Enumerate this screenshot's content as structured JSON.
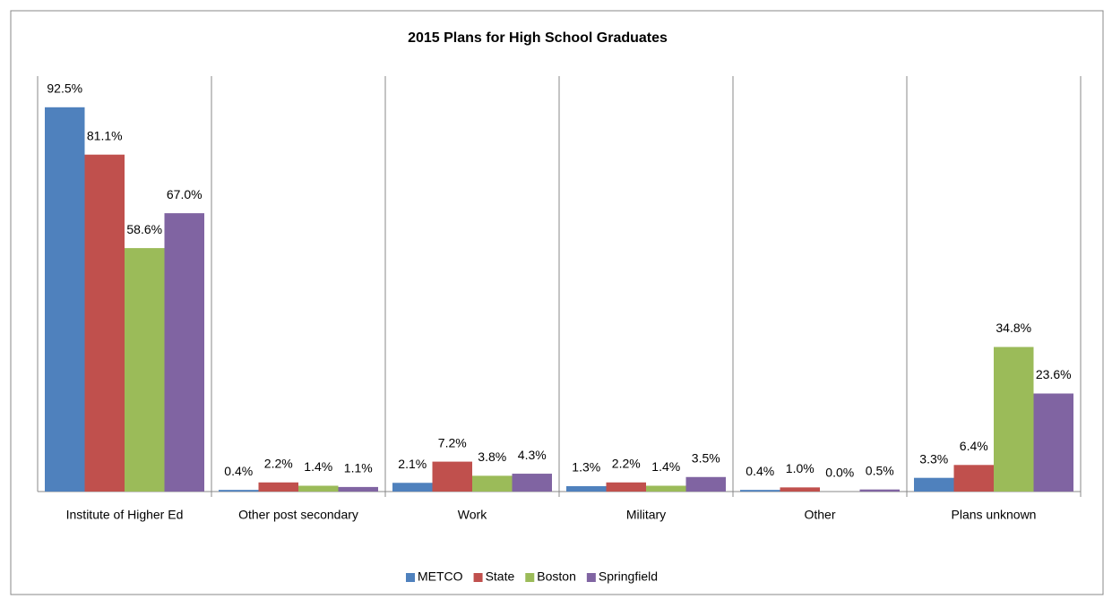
{
  "chart_data": {
    "type": "bar",
    "title": "2015 Plans for High School Graduates",
    "categories": [
      "Institute of Higher Ed",
      "Other post secondary",
      "Work",
      "Military",
      "Other",
      "Plans unknown"
    ],
    "series": [
      {
        "name": "METCO",
        "color": "#4f81bd",
        "values": [
          92.5,
          0.4,
          2.1,
          1.3,
          0.4,
          3.3
        ],
        "value_labels": [
          "92.5%",
          "0.4%",
          "2.1%",
          "1.3%",
          "0.4%",
          "3.3%"
        ]
      },
      {
        "name": "State",
        "color": "#c0504d",
        "values": [
          81.1,
          2.2,
          7.2,
          2.2,
          1.0,
          6.4
        ],
        "value_labels": [
          "81.1%",
          "2.2%",
          "7.2%",
          "2.2%",
          "1.0%",
          "6.4%"
        ]
      },
      {
        "name": "Boston",
        "color": "#9bbb59",
        "values": [
          58.6,
          1.4,
          3.8,
          1.4,
          0,
          34.8
        ],
        "value_labels": [
          "58.6%",
          "1.4%",
          "3.8%",
          "1.4%",
          "0.0%",
          "34.8%"
        ]
      },
      {
        "name": "Springfield",
        "color": "#8064a2",
        "values": [
          67.0,
          1.1,
          4.3,
          3.5,
          0.5,
          23.6
        ],
        "value_labels": [
          "67.0%",
          "1.1%",
          "4.3%",
          "3.5%",
          "0.5%",
          "23.6%"
        ]
      }
    ],
    "ylim": [
      0,
      100
    ],
    "legend": "bottom"
  }
}
